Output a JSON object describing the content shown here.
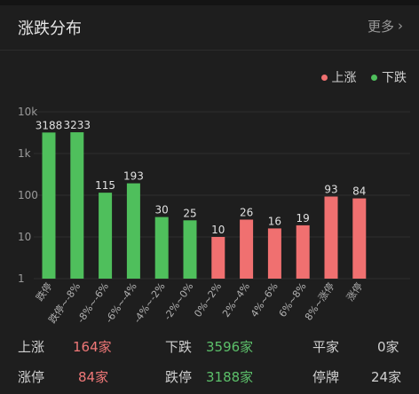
{
  "header": {
    "title": "涨跌分布",
    "more_label": "更多",
    "chevron_icon": "chevron-right-icon"
  },
  "legend": {
    "up_label": "上涨",
    "down_label": "下跌",
    "up_color": "#f07070",
    "down_color": "#4fbf5c"
  },
  "chart_data": {
    "type": "bar",
    "scale": "log",
    "ylim": [
      1,
      10000
    ],
    "yticks": [
      "10k",
      "1k",
      "100",
      "10",
      "1"
    ],
    "categories": [
      "跌停",
      "跌停~-8%",
      "-8%~-6%",
      "-6%~-4%",
      "-4%~-2%",
      "-2%~0%",
      "0%~2%",
      "2%~4%",
      "4%~6%",
      "6%~8%",
      "8%~涨停",
      "涨停"
    ],
    "values": [
      3188,
      3233,
      115,
      193,
      30,
      25,
      10,
      26,
      16,
      19,
      93,
      84
    ],
    "labels": [
      "3188",
      "3233",
      "115",
      "193",
      "30",
      "25",
      "10",
      "26",
      "16",
      "19",
      "93",
      "84"
    ],
    "colors": [
      "down",
      "down",
      "down",
      "down",
      "down",
      "down",
      "up",
      "up",
      "up",
      "up",
      "up",
      "up"
    ],
    "grid": true
  },
  "stats": {
    "rise_label": "上涨",
    "rise_value": "164家",
    "fall_label": "下跌",
    "fall_value": "3596家",
    "flat_label": "平家",
    "flat_value": "0家",
    "limit_up_label": "涨停",
    "limit_up_value": "84家",
    "limit_down_label": "跌停",
    "limit_down_value": "3188家",
    "halt_label": "停牌",
    "halt_value": "24家"
  }
}
